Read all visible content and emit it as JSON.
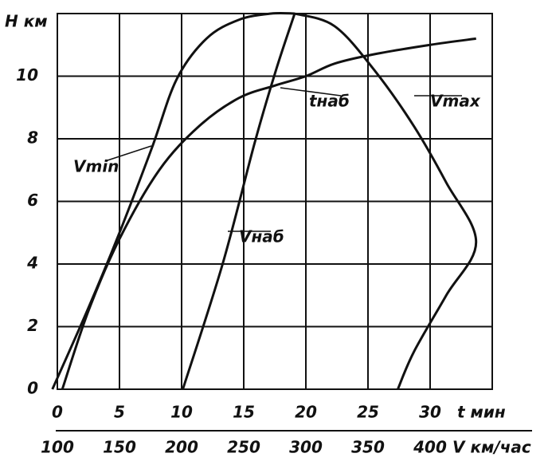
{
  "chart_data": {
    "type": "line",
    "y_label": "H км",
    "x_label": "t мин",
    "x2_label": "V км/час",
    "xlim": [
      0,
      35
    ],
    "xticks": [
      0,
      5,
      10,
      15,
      20,
      25,
      30
    ],
    "x2lim": [
      100,
      450
    ],
    "x2ticks": [
      100,
      150,
      200,
      250,
      300,
      350,
      400
    ],
    "ylim": [
      0,
      12
    ],
    "yticks": [
      0,
      2,
      4,
      6,
      8,
      10
    ],
    "grid": true,
    "series": [
      {
        "name": "Vmin",
        "color": "#111111",
        "x": [
          -0.4,
          2.5,
          5,
          7.6,
          9.6,
          12,
          14.6,
          17.2,
          19.1
        ],
        "values": [
          0,
          2.6,
          5,
          7.7,
          9.9,
          11.2,
          11.8,
          12,
          12
        ]
      },
      {
        "name": "Vmax",
        "color": "#111111",
        "x": [
          19.1,
          22.3,
          25.5,
          28.7,
          31.3,
          33.7,
          31.3,
          28.7,
          27.4
        ],
        "values": [
          12,
          11.6,
          10.2,
          8.4,
          6.6,
          4.7,
          3,
          1.2,
          0
        ]
      },
      {
        "name": "tнаб",
        "color": "#111111",
        "x": [
          0.4,
          2.5,
          5,
          8.2,
          11.4,
          14.6,
          17.5,
          20,
          22.3,
          25.5,
          30,
          33.7
        ],
        "values": [
          0,
          2.5,
          4.8,
          7,
          8.4,
          9.3,
          9.7,
          10,
          10.4,
          10.7,
          11,
          11.2
        ]
      },
      {
        "name": "Vнаб",
        "color": "#111111",
        "x": [
          10.1,
          13.3,
          15.9,
          17.6,
          19.1
        ],
        "values": [
          0,
          4,
          7.9,
          10.2,
          12
        ]
      }
    ]
  }
}
